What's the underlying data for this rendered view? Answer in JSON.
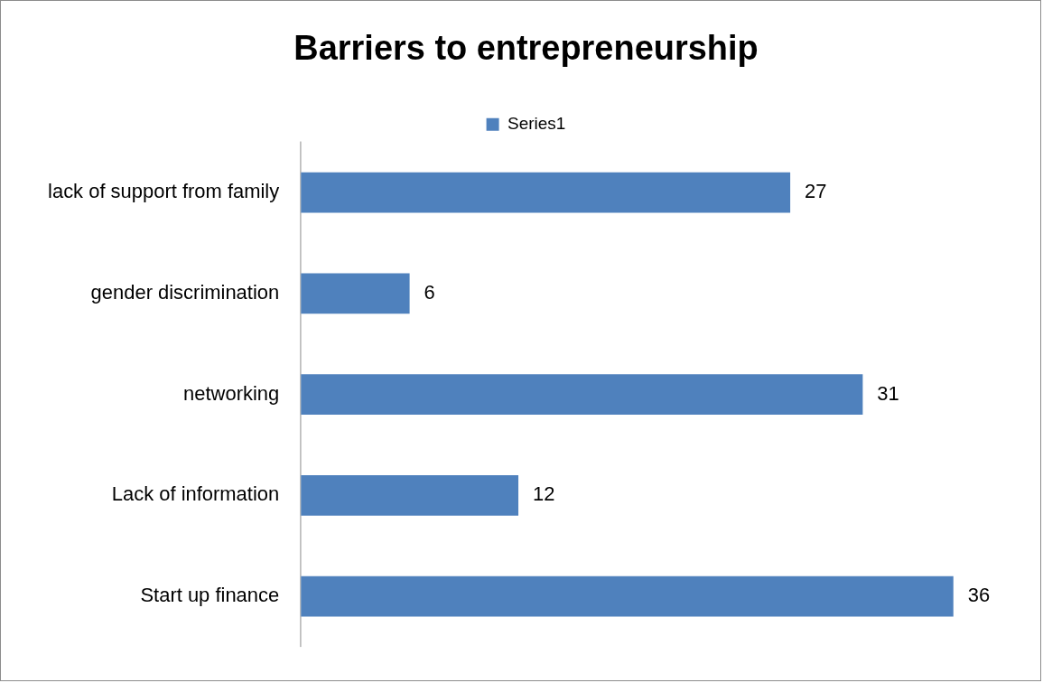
{
  "chart_data": {
    "type": "bar",
    "title": "Barriers to entrepreneurship",
    "orientation": "horizontal",
    "categories": [
      "lack of support from family",
      "gender discrimination",
      "networking",
      "Lack of information",
      "Start up finance"
    ],
    "series": [
      {
        "name": "Series1",
        "color": "#4f81bd",
        "values": [
          27,
          6,
          31,
          12,
          36
        ]
      }
    ],
    "tick_labels": "y",
    "data_labels": true,
    "legend": "top",
    "grid": false
  }
}
